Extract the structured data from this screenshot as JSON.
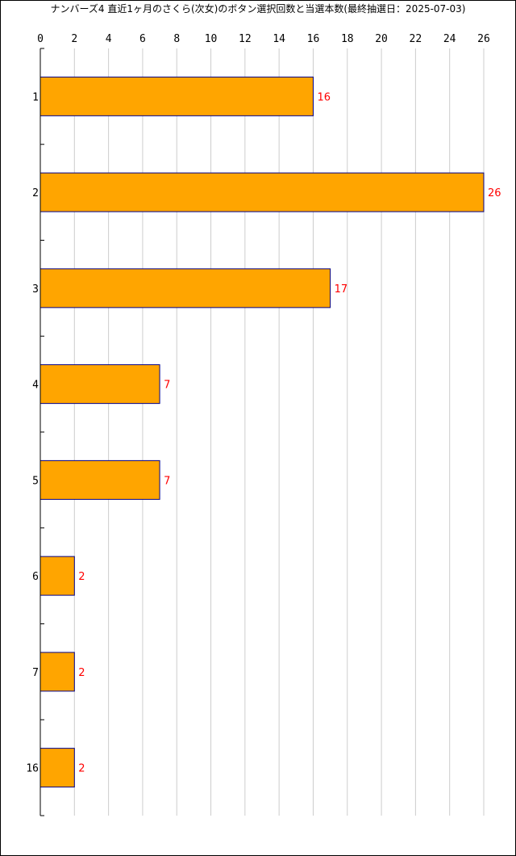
{
  "chart_data": {
    "type": "bar",
    "orientation": "horizontal",
    "title": "ナンバーズ4 直近1ヶ月のさくら(次女)のボタン選択回数と当選本数(最終抽選日：2025-07-03)",
    "categories": [
      "1",
      "2",
      "3",
      "4",
      "5",
      "6",
      "7",
      "16"
    ],
    "values": [
      16,
      26,
      17,
      7,
      7,
      2,
      2,
      2
    ],
    "data_labels": [
      "16",
      "26",
      "17",
      "7",
      "7",
      "2",
      "2",
      "2"
    ],
    "xlim": [
      0,
      26
    ],
    "xticks": [
      "0",
      "2",
      "4",
      "6",
      "8",
      "10",
      "12",
      "14",
      "16",
      "18",
      "20",
      "22",
      "24",
      "26"
    ],
    "xtick_values": [
      0,
      2,
      4,
      6,
      8,
      10,
      12,
      14,
      16,
      18,
      20,
      22,
      24,
      26
    ],
    "xaxis_position": "top",
    "xlabel": "",
    "ylabel": "",
    "grid": "vertical",
    "legend": "none",
    "colors": {
      "bar_fill": "#FFA500",
      "bar_stroke": "#00008B",
      "data_label": "#FF0000",
      "grid": "#CCCCCC",
      "axis": "#000000"
    }
  }
}
